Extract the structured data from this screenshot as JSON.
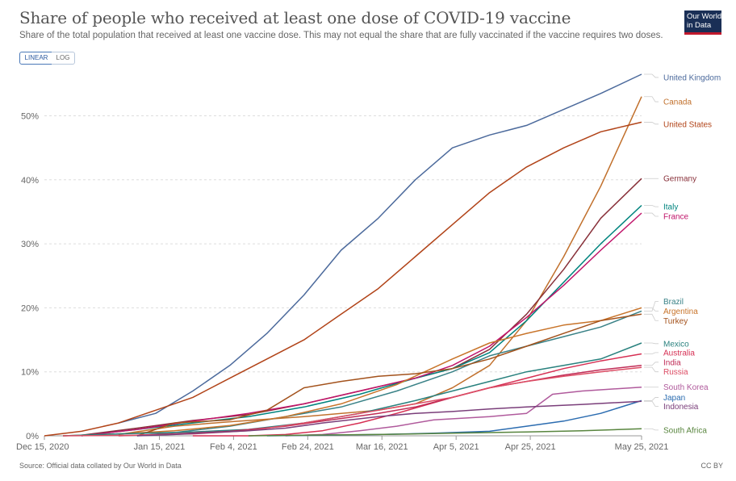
{
  "title": "Share of people who received at least one dose of COVID-19 vaccine",
  "subtitle": "Share of the total population that received at least one vaccine dose. This may not equal the share that are fully vaccinated if the vaccine requires two doses.",
  "logo": {
    "line1": "Our World",
    "line2": "in Data"
  },
  "toggle": {
    "linear": "LINEAR",
    "log": "LOG"
  },
  "source": "Source: Official data collated by Our World in Data",
  "license": "CC BY",
  "chart_data": {
    "type": "line",
    "title": "Share of people who received at least one dose of COVID-19 vaccine",
    "x_tick_labels": [
      "Dec 15, 2020",
      "Jan 15, 2021",
      "Feb 4, 2021",
      "Feb 24, 2021",
      "Mar 16, 2021",
      "Apr 5, 2021",
      "Apr 25, 2021",
      "May 25, 2021"
    ],
    "y_ticks": [
      0,
      10,
      20,
      30,
      40,
      50
    ],
    "y_tick_labels": [
      "0%",
      "10%",
      "20%",
      "30%",
      "40%",
      "50%"
    ],
    "ylim": [
      0,
      57
    ],
    "x_unit": "days since Dec 15, 2020",
    "xlim": [
      0,
      161
    ],
    "grid": true,
    "series": [
      {
        "name": "United Kingdom",
        "color": "#4c6a9c",
        "label_y": 56.0,
        "points": [
          [
            20,
            2
          ],
          [
            30,
            3.5
          ],
          [
            40,
            7
          ],
          [
            50,
            11
          ],
          [
            60,
            16
          ],
          [
            70,
            22
          ],
          [
            80,
            29
          ],
          [
            90,
            34
          ],
          [
            100,
            40
          ],
          [
            110,
            45
          ],
          [
            120,
            47
          ],
          [
            130,
            48.5
          ],
          [
            140,
            51
          ],
          [
            150,
            53.5
          ],
          [
            161,
            56.5
          ]
        ]
      },
      {
        "name": "Canada",
        "color": "#c1702c",
        "label_y": 52.2,
        "points": [
          [
            20,
            0.2
          ],
          [
            35,
            1.5
          ],
          [
            50,
            2.2
          ],
          [
            70,
            3
          ],
          [
            90,
            4
          ],
          [
            100,
            5
          ],
          [
            110,
            7.5
          ],
          [
            120,
            11
          ],
          [
            130,
            18
          ],
          [
            140,
            28
          ],
          [
            150,
            39
          ],
          [
            161,
            53
          ]
        ]
      },
      {
        "name": "United States",
        "color": "#b14318",
        "label_y": 48.7,
        "points": [
          [
            0,
            0
          ],
          [
            10,
            0.7
          ],
          [
            20,
            2
          ],
          [
            30,
            4
          ],
          [
            40,
            6
          ],
          [
            50,
            9
          ],
          [
            60,
            12
          ],
          [
            70,
            15
          ],
          [
            80,
            19
          ],
          [
            90,
            23
          ],
          [
            100,
            28
          ],
          [
            110,
            33
          ],
          [
            120,
            38
          ],
          [
            130,
            42
          ],
          [
            140,
            45
          ],
          [
            150,
            47.5
          ],
          [
            161,
            49
          ]
        ]
      },
      {
        "name": "Germany",
        "color": "#883039",
        "label_y": 40.2,
        "points": [
          [
            10,
            0.1
          ],
          [
            25,
            1.2
          ],
          [
            40,
            2.4
          ],
          [
            55,
            3.3
          ],
          [
            70,
            5
          ],
          [
            85,
            7
          ],
          [
            100,
            9
          ],
          [
            110,
            10.5
          ],
          [
            120,
            13.5
          ],
          [
            130,
            19
          ],
          [
            140,
            26
          ],
          [
            150,
            34
          ],
          [
            161,
            40.2
          ]
        ]
      },
      {
        "name": "Italy",
        "color": "#00847e",
        "label_y": 35.8,
        "points": [
          [
            10,
            0
          ],
          [
            25,
            1
          ],
          [
            40,
            2
          ],
          [
            55,
            3
          ],
          [
            70,
            4.5
          ],
          [
            85,
            6.5
          ],
          [
            100,
            9
          ],
          [
            110,
            10.5
          ],
          [
            120,
            13
          ],
          [
            130,
            18
          ],
          [
            140,
            24
          ],
          [
            150,
            30
          ],
          [
            161,
            36
          ]
        ]
      },
      {
        "name": "France",
        "color": "#c0146a",
        "label_y": 34.3,
        "points": [
          [
            10,
            0
          ],
          [
            25,
            1
          ],
          [
            40,
            2.3
          ],
          [
            55,
            3.5
          ],
          [
            70,
            5
          ],
          [
            85,
            7
          ],
          [
            100,
            9
          ],
          [
            110,
            11
          ],
          [
            120,
            14
          ],
          [
            130,
            18.5
          ],
          [
            140,
            23.5
          ],
          [
            150,
            29
          ],
          [
            161,
            34.8
          ]
        ]
      },
      {
        "name": "Brazil",
        "color": "#3a8287",
        "label_y": 21.0,
        "points": [
          [
            25,
            0
          ],
          [
            35,
            0.5
          ],
          [
            50,
            1.5
          ],
          [
            65,
            3
          ],
          [
            80,
            4.5
          ],
          [
            95,
            7
          ],
          [
            110,
            10
          ],
          [
            120,
            12.5
          ],
          [
            130,
            14
          ],
          [
            140,
            15.5
          ],
          [
            150,
            17
          ],
          [
            161,
            19.5
          ]
        ]
      },
      {
        "name": "Argentina",
        "color": "#c8742a",
        "label_y": 19.5,
        "points": [
          [
            5,
            0
          ],
          [
            20,
            0.3
          ],
          [
            35,
            0.8
          ],
          [
            50,
            1.6
          ],
          [
            65,
            3
          ],
          [
            80,
            5
          ],
          [
            95,
            8
          ],
          [
            110,
            12
          ],
          [
            120,
            14.5
          ],
          [
            130,
            16
          ],
          [
            140,
            17.3
          ],
          [
            150,
            18
          ],
          [
            161,
            20
          ]
        ]
      },
      {
        "name": "Turkey",
        "color": "#a3521c",
        "label_y": 18.0,
        "points": [
          [
            25,
            0
          ],
          [
            35,
            2
          ],
          [
            50,
            2.5
          ],
          [
            60,
            4
          ],
          [
            70,
            7.5
          ],
          [
            80,
            8.5
          ],
          [
            90,
            9.3
          ],
          [
            100,
            9.7
          ],
          [
            110,
            10.5
          ],
          [
            120,
            12
          ],
          [
            130,
            14
          ],
          [
            140,
            16
          ],
          [
            150,
            18
          ],
          [
            161,
            19
          ]
        ]
      },
      {
        "name": "Mexico",
        "color": "#29817e",
        "label_y": 14.4,
        "points": [
          [
            5,
            0
          ],
          [
            20,
            0.3
          ],
          [
            40,
            0.6
          ],
          [
            55,
            1
          ],
          [
            70,
            2
          ],
          [
            85,
            3.5
          ],
          [
            100,
            5.5
          ],
          [
            110,
            7
          ],
          [
            120,
            8.5
          ],
          [
            130,
            10
          ],
          [
            140,
            11
          ],
          [
            150,
            12
          ],
          [
            161,
            14.5
          ]
        ]
      },
      {
        "name": "Australia",
        "color": "#d62f53",
        "label_y": 13.0,
        "points": [
          [
            40,
            0
          ],
          [
            55,
            0
          ],
          [
            65,
            0.2
          ],
          [
            75,
            0.8
          ],
          [
            85,
            2
          ],
          [
            95,
            3.5
          ],
          [
            110,
            6
          ],
          [
            120,
            7.5
          ],
          [
            130,
            9
          ],
          [
            140,
            10.5
          ],
          [
            150,
            11.7
          ],
          [
            161,
            12.8
          ]
        ]
      },
      {
        "name": "India",
        "color": "#c02d57",
        "label_y": 11.5,
        "points": [
          [
            20,
            0
          ],
          [
            35,
            0.3
          ],
          [
            50,
            0.7
          ],
          [
            65,
            1.5
          ],
          [
            75,
            2.3
          ],
          [
            90,
            3.5
          ],
          [
            100,
            4.5
          ],
          [
            110,
            6
          ],
          [
            120,
            7.5
          ],
          [
            130,
            8.5
          ],
          [
            140,
            9.5
          ],
          [
            150,
            10.3
          ],
          [
            161,
            11
          ]
        ]
      },
      {
        "name": "Russia",
        "color": "#dc4c64",
        "label_y": 10.0,
        "points": [
          [
            5,
            0
          ],
          [
            25,
            0.1
          ],
          [
            40,
            0.3
          ],
          [
            55,
            0.8
          ],
          [
            70,
            2
          ],
          [
            85,
            3.5
          ],
          [
            100,
            5
          ],
          [
            110,
            6
          ],
          [
            120,
            7.5
          ],
          [
            130,
            8.5
          ],
          [
            140,
            9.3
          ],
          [
            150,
            10
          ],
          [
            161,
            10.7
          ]
        ]
      },
      {
        "name": "South Korea",
        "color": "#b05a9c",
        "label_y": 7.6,
        "points": [
          [
            65,
            0
          ],
          [
            75,
            0.2
          ],
          [
            85,
            0.8
          ],
          [
            95,
            1.5
          ],
          [
            105,
            2.5
          ],
          [
            120,
            3
          ],
          [
            130,
            3.5
          ],
          [
            137,
            6.5
          ],
          [
            145,
            7
          ],
          [
            161,
            7.6
          ]
        ]
      },
      {
        "name": "Japan",
        "color": "#2b6cb0",
        "label_y": 6.0,
        "points": [
          [
            60,
            0
          ],
          [
            75,
            0.1
          ],
          [
            90,
            0.2
          ],
          [
            105,
            0.4
          ],
          [
            120,
            0.7
          ],
          [
            130,
            1.5
          ],
          [
            140,
            2.3
          ],
          [
            150,
            3.5
          ],
          [
            161,
            5.5
          ]
        ]
      },
      {
        "name": "Indonesia",
        "color": "#7a3e7a",
        "label_y": 4.6,
        "points": [
          [
            25,
            0
          ],
          [
            35,
            0.2
          ],
          [
            45,
            0.5
          ],
          [
            55,
            0.8
          ],
          [
            65,
            1.2
          ],
          [
            75,
            2
          ],
          [
            90,
            3
          ],
          [
            100,
            3.5
          ],
          [
            110,
            3.8
          ],
          [
            120,
            4.2
          ],
          [
            130,
            4.5
          ],
          [
            145,
            4.9
          ],
          [
            161,
            5.4
          ]
        ]
      },
      {
        "name": "South Africa",
        "color": "#58853e",
        "label_y": 0.9,
        "points": [
          [
            55,
            0
          ],
          [
            70,
            0.1
          ],
          [
            90,
            0.2
          ],
          [
            110,
            0.4
          ],
          [
            130,
            0.6
          ],
          [
            145,
            0.8
          ],
          [
            161,
            1.1
          ]
        ]
      }
    ]
  }
}
